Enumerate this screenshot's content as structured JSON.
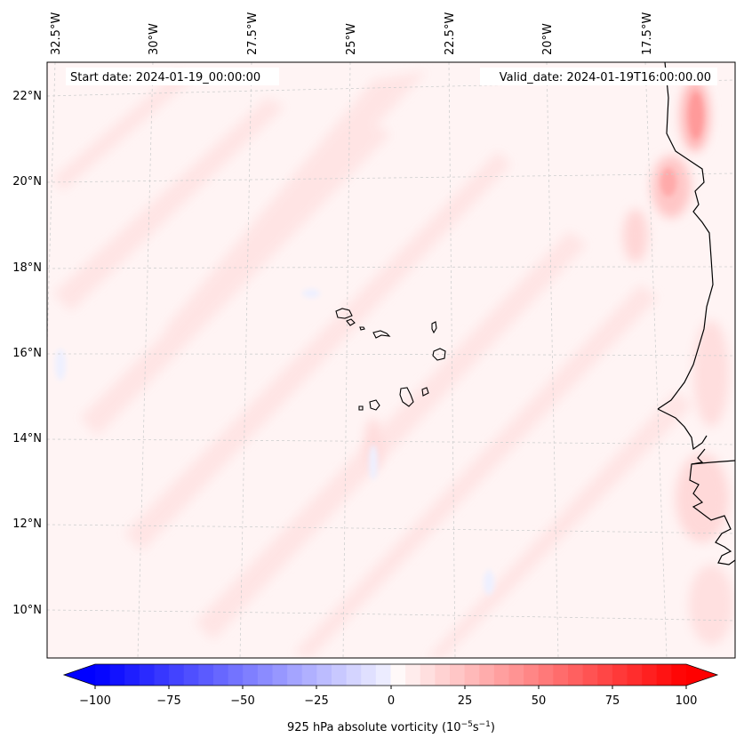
{
  "header": {
    "start_date": "Start date: 2024-01-19_00:00:00",
    "valid_date": "Valid_date: 2024-01-19T16:00:00.00"
  },
  "map": {
    "lon_labels": [
      "32.5°W",
      "30°W",
      "27.5°W",
      "25°W",
      "22.5°W",
      "20°W",
      "17.5°W"
    ],
    "lat_labels": [
      "22°N",
      "20°N",
      "18°N",
      "16°N",
      "14°N",
      "12°N",
      "10°N"
    ]
  },
  "colorbar": {
    "ticks": [
      "−100",
      "−75",
      "−50",
      "−25",
      "0",
      "25",
      "50",
      "75",
      "100"
    ],
    "label_prefix": "925 hPa absolute vorticity (10",
    "label_exp1": "−5",
    "label_mid": "s",
    "label_exp2": "−1",
    "label_suffix": ")",
    "min_color": "#0000ff",
    "mid_color": "#ffffff",
    "max_color": "#ff0000"
  }
}
